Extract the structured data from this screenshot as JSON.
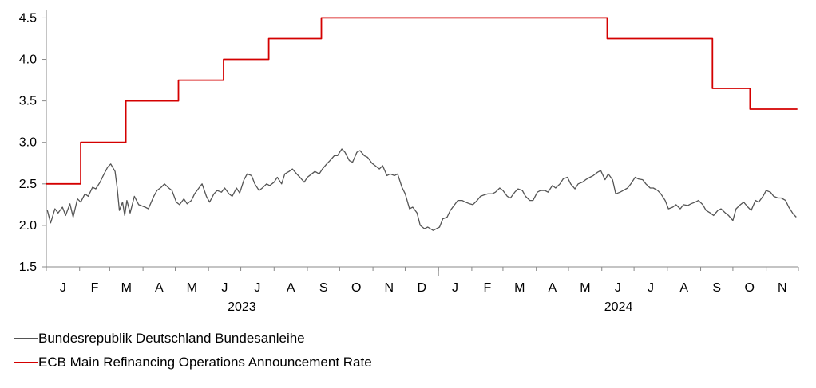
{
  "chart_data": {
    "type": "line",
    "y_ticks": [
      "4.5",
      "4.0",
      "3.5",
      "3.0",
      "2.5",
      "2.0",
      "1.5"
    ],
    "ylim": [
      1.5,
      4.6
    ],
    "month_labels": [
      "J",
      "F",
      "M",
      "A",
      "M",
      "J",
      "J",
      "A",
      "S",
      "O",
      "N",
      "D",
      "J",
      "F",
      "M",
      "A",
      "M",
      "J",
      "J",
      "A",
      "S",
      "O",
      "N"
    ],
    "year_labels": [
      "2023",
      "2024"
    ],
    "x_range": [
      "2023-01-01",
      "2024-11-30"
    ],
    "grid": false,
    "legend_placement": "bottom-left",
    "series": [
      {
        "name": "Bundesrepublik Deutschland Bundesanleihe",
        "color": "#555555",
        "points": [
          [
            "2023-01-02",
            2.18
          ],
          [
            "2023-01-05",
            2.03
          ],
          [
            "2023-01-09",
            2.2
          ],
          [
            "2023-01-12",
            2.15
          ],
          [
            "2023-01-16",
            2.22
          ],
          [
            "2023-01-19",
            2.12
          ],
          [
            "2023-01-23",
            2.26
          ],
          [
            "2023-01-26",
            2.1
          ],
          [
            "2023-01-30",
            2.32
          ],
          [
            "2023-02-02",
            2.28
          ],
          [
            "2023-02-06",
            2.38
          ],
          [
            "2023-02-09",
            2.35
          ],
          [
            "2023-02-13",
            2.46
          ],
          [
            "2023-02-16",
            2.44
          ],
          [
            "2023-02-20",
            2.52
          ],
          [
            "2023-02-23",
            2.6
          ],
          [
            "2023-02-27",
            2.7
          ],
          [
            "2023-03-02",
            2.74
          ],
          [
            "2023-03-06",
            2.65
          ],
          [
            "2023-03-08",
            2.45
          ],
          [
            "2023-03-10",
            2.18
          ],
          [
            "2023-03-13",
            2.28
          ],
          [
            "2023-03-15",
            2.12
          ],
          [
            "2023-03-17",
            2.3
          ],
          [
            "2023-03-20",
            2.15
          ],
          [
            "2023-03-24",
            2.35
          ],
          [
            "2023-03-28",
            2.25
          ],
          [
            "2023-04-03",
            2.22
          ],
          [
            "2023-04-06",
            2.2
          ],
          [
            "2023-04-11",
            2.35
          ],
          [
            "2023-04-14",
            2.42
          ],
          [
            "2023-04-18",
            2.46
          ],
          [
            "2023-04-21",
            2.5
          ],
          [
            "2023-04-25",
            2.45
          ],
          [
            "2023-04-28",
            2.42
          ],
          [
            "2023-05-02",
            2.28
          ],
          [
            "2023-05-05",
            2.25
          ],
          [
            "2023-05-09",
            2.32
          ],
          [
            "2023-05-12",
            2.26
          ],
          [
            "2023-05-16",
            2.3
          ],
          [
            "2023-05-19",
            2.38
          ],
          [
            "2023-05-23",
            2.45
          ],
          [
            "2023-05-26",
            2.5
          ],
          [
            "2023-05-30",
            2.35
          ],
          [
            "2023-06-02",
            2.28
          ],
          [
            "2023-06-06",
            2.38
          ],
          [
            "2023-06-09",
            2.42
          ],
          [
            "2023-06-13",
            2.4
          ],
          [
            "2023-06-16",
            2.45
          ],
          [
            "2023-06-20",
            2.38
          ],
          [
            "2023-06-23",
            2.35
          ],
          [
            "2023-06-27",
            2.45
          ],
          [
            "2023-06-30",
            2.39
          ],
          [
            "2023-07-04",
            2.55
          ],
          [
            "2023-07-07",
            2.62
          ],
          [
            "2023-07-11",
            2.6
          ],
          [
            "2023-07-14",
            2.5
          ],
          [
            "2023-07-18",
            2.42
          ],
          [
            "2023-07-21",
            2.45
          ],
          [
            "2023-07-25",
            2.5
          ],
          [
            "2023-07-28",
            2.48
          ],
          [
            "2023-08-01",
            2.52
          ],
          [
            "2023-08-04",
            2.58
          ],
          [
            "2023-08-08",
            2.5
          ],
          [
            "2023-08-11",
            2.62
          ],
          [
            "2023-08-15",
            2.65
          ],
          [
            "2023-08-18",
            2.68
          ],
          [
            "2023-08-22",
            2.62
          ],
          [
            "2023-08-25",
            2.58
          ],
          [
            "2023-08-29",
            2.52
          ],
          [
            "2023-09-01",
            2.58
          ],
          [
            "2023-09-05",
            2.62
          ],
          [
            "2023-09-08",
            2.65
          ],
          [
            "2023-09-12",
            2.62
          ],
          [
            "2023-09-15",
            2.68
          ],
          [
            "2023-09-19",
            2.74
          ],
          [
            "2023-09-22",
            2.78
          ],
          [
            "2023-09-26",
            2.84
          ],
          [
            "2023-09-29",
            2.84
          ],
          [
            "2023-10-03",
            2.92
          ],
          [
            "2023-10-06",
            2.88
          ],
          [
            "2023-10-10",
            2.78
          ],
          [
            "2023-10-13",
            2.76
          ],
          [
            "2023-10-17",
            2.88
          ],
          [
            "2023-10-20",
            2.9
          ],
          [
            "2023-10-24",
            2.84
          ],
          [
            "2023-10-27",
            2.82
          ],
          [
            "2023-10-31",
            2.75
          ],
          [
            "2023-11-03",
            2.72
          ],
          [
            "2023-11-07",
            2.68
          ],
          [
            "2023-11-10",
            2.72
          ],
          [
            "2023-11-14",
            2.6
          ],
          [
            "2023-11-17",
            2.62
          ],
          [
            "2023-11-21",
            2.6
          ],
          [
            "2023-11-24",
            2.62
          ],
          [
            "2023-11-28",
            2.46
          ],
          [
            "2023-12-01",
            2.38
          ],
          [
            "2023-12-05",
            2.2
          ],
          [
            "2023-12-08",
            2.22
          ],
          [
            "2023-12-12",
            2.15
          ],
          [
            "2023-12-15",
            2.0
          ],
          [
            "2023-12-19",
            1.96
          ],
          [
            "2023-12-22",
            1.98
          ],
          [
            "2023-12-27",
            1.94
          ],
          [
            "2024-01-02",
            1.98
          ],
          [
            "2024-01-05",
            2.08
          ],
          [
            "2024-01-09",
            2.1
          ],
          [
            "2024-01-12",
            2.18
          ],
          [
            "2024-01-16",
            2.25
          ],
          [
            "2024-01-19",
            2.3
          ],
          [
            "2024-01-23",
            2.3
          ],
          [
            "2024-01-26",
            2.28
          ],
          [
            "2024-01-30",
            2.26
          ],
          [
            "2024-02-02",
            2.25
          ],
          [
            "2024-02-06",
            2.3
          ],
          [
            "2024-02-09",
            2.35
          ],
          [
            "2024-02-13",
            2.37
          ],
          [
            "2024-02-16",
            2.38
          ],
          [
            "2024-02-20",
            2.38
          ],
          [
            "2024-02-23",
            2.4
          ],
          [
            "2024-02-27",
            2.45
          ],
          [
            "2024-03-01",
            2.42
          ],
          [
            "2024-03-05",
            2.35
          ],
          [
            "2024-03-08",
            2.33
          ],
          [
            "2024-03-12",
            2.4
          ],
          [
            "2024-03-15",
            2.44
          ],
          [
            "2024-03-19",
            2.42
          ],
          [
            "2024-03-22",
            2.35
          ],
          [
            "2024-03-26",
            2.3
          ],
          [
            "2024-03-29",
            2.3
          ],
          [
            "2024-04-02",
            2.4
          ],
          [
            "2024-04-05",
            2.42
          ],
          [
            "2024-04-09",
            2.42
          ],
          [
            "2024-04-12",
            2.4
          ],
          [
            "2024-04-16",
            2.48
          ],
          [
            "2024-04-19",
            2.45
          ],
          [
            "2024-04-23",
            2.5
          ],
          [
            "2024-04-26",
            2.56
          ],
          [
            "2024-04-30",
            2.58
          ],
          [
            "2024-05-03",
            2.5
          ],
          [
            "2024-05-07",
            2.44
          ],
          [
            "2024-05-10",
            2.5
          ],
          [
            "2024-05-14",
            2.52
          ],
          [
            "2024-05-17",
            2.55
          ],
          [
            "2024-05-21",
            2.58
          ],
          [
            "2024-05-24",
            2.6
          ],
          [
            "2024-05-28",
            2.64
          ],
          [
            "2024-05-31",
            2.66
          ],
          [
            "2024-06-04",
            2.55
          ],
          [
            "2024-06-07",
            2.62
          ],
          [
            "2024-06-11",
            2.55
          ],
          [
            "2024-06-14",
            2.38
          ],
          [
            "2024-06-18",
            2.4
          ],
          [
            "2024-06-21",
            2.42
          ],
          [
            "2024-06-25",
            2.45
          ],
          [
            "2024-06-28",
            2.5
          ],
          [
            "2024-07-02",
            2.58
          ],
          [
            "2024-07-05",
            2.56
          ],
          [
            "2024-07-09",
            2.55
          ],
          [
            "2024-07-12",
            2.5
          ],
          [
            "2024-07-16",
            2.45
          ],
          [
            "2024-07-19",
            2.45
          ],
          [
            "2024-07-23",
            2.42
          ],
          [
            "2024-07-26",
            2.38
          ],
          [
            "2024-07-30",
            2.3
          ],
          [
            "2024-08-02",
            2.2
          ],
          [
            "2024-08-06",
            2.22
          ],
          [
            "2024-08-09",
            2.25
          ],
          [
            "2024-08-13",
            2.2
          ],
          [
            "2024-08-16",
            2.25
          ],
          [
            "2024-08-20",
            2.24
          ],
          [
            "2024-08-23",
            2.26
          ],
          [
            "2024-08-27",
            2.28
          ],
          [
            "2024-08-30",
            2.3
          ],
          [
            "2024-09-03",
            2.25
          ],
          [
            "2024-09-06",
            2.18
          ],
          [
            "2024-09-10",
            2.15
          ],
          [
            "2024-09-13",
            2.12
          ],
          [
            "2024-09-17",
            2.18
          ],
          [
            "2024-09-20",
            2.2
          ],
          [
            "2024-09-24",
            2.15
          ],
          [
            "2024-09-27",
            2.12
          ],
          [
            "2024-10-01",
            2.06
          ],
          [
            "2024-10-04",
            2.2
          ],
          [
            "2024-10-08",
            2.25
          ],
          [
            "2024-10-11",
            2.28
          ],
          [
            "2024-10-15",
            2.22
          ],
          [
            "2024-10-18",
            2.18
          ],
          [
            "2024-10-22",
            2.3
          ],
          [
            "2024-10-25",
            2.28
          ],
          [
            "2024-10-29",
            2.35
          ],
          [
            "2024-11-01",
            2.42
          ],
          [
            "2024-11-05",
            2.4
          ],
          [
            "2024-11-08",
            2.35
          ],
          [
            "2024-11-12",
            2.33
          ],
          [
            "2024-11-15",
            2.33
          ],
          [
            "2024-11-19",
            2.3
          ],
          [
            "2024-11-22",
            2.22
          ],
          [
            "2024-11-26",
            2.14
          ],
          [
            "2024-11-29",
            2.1
          ]
        ]
      },
      {
        "name": "ECB Main Refinancing Operations Announcement Rate",
        "color": "#d40000",
        "step": true,
        "points": [
          [
            "2023-01-01",
            2.5
          ],
          [
            "2023-02-02",
            3.0
          ],
          [
            "2023-03-16",
            3.5
          ],
          [
            "2023-05-04",
            3.75
          ],
          [
            "2023-06-15",
            4.0
          ],
          [
            "2023-07-27",
            4.25
          ],
          [
            "2023-09-14",
            4.5
          ],
          [
            "2024-06-06",
            4.25
          ],
          [
            "2024-09-12",
            3.65
          ],
          [
            "2024-10-17",
            3.4
          ],
          [
            "2024-11-30",
            3.4
          ]
        ]
      }
    ]
  }
}
